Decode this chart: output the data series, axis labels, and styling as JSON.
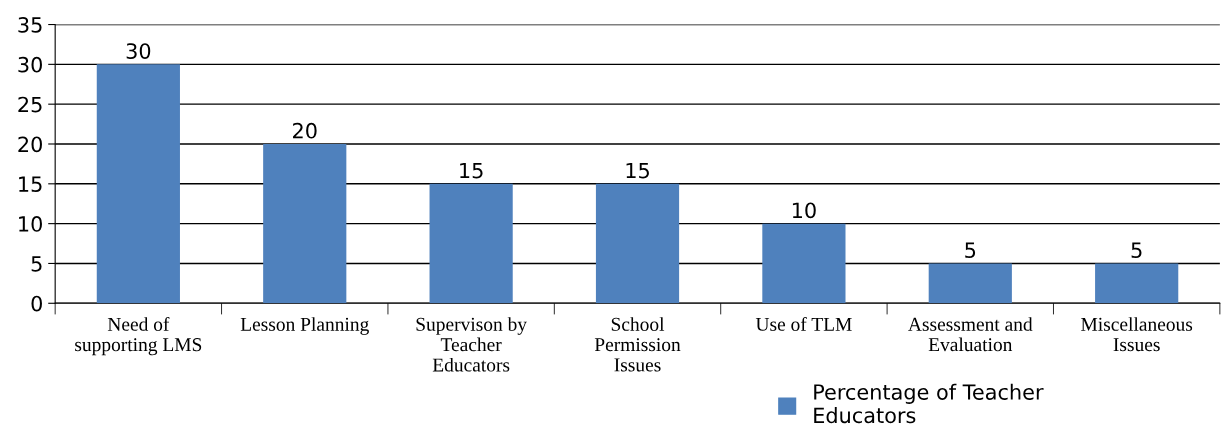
{
  "chart_data": {
    "type": "bar",
    "categories": [
      "Need of\nsupporting LMS",
      "Lesson Planning",
      "Supervison by\nTeacher\nEducators",
      "School\nPermission\nIssues",
      "Use of TLM",
      "Assessment and\nEvaluation",
      "Miscellaneous\nIssues"
    ],
    "series": [
      {
        "name": "Percentage of Teacher\nEducators",
        "color": "#4f81bd",
        "values": [
          30,
          20,
          15,
          15,
          10,
          5,
          5
        ]
      }
    ],
    "ylim": [
      0,
      35
    ],
    "yticks": [
      0,
      5,
      10,
      15,
      20,
      25,
      30,
      35
    ],
    "grid": "y",
    "data_labels": true,
    "legend": "bottom right"
  }
}
